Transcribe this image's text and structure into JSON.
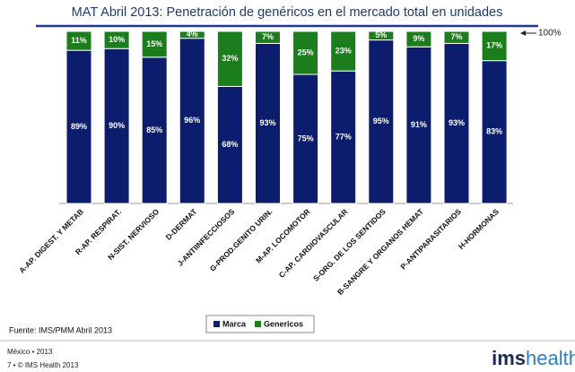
{
  "chart_data": {
    "type": "stacked_bar",
    "title": "MAT Abril 2013: Penetración de genéricos en el mercado total en unidades",
    "categories": [
      "A-AP. DIGEST. Y METAB",
      "R-AP. RESPIRAT.",
      "N-SIST. NERVIOSO",
      "D-DERMAT",
      "J-ANTIINFECCIOSOS",
      "G-PROD.GENITO URIN.",
      "M-AP. LOCOMOTOR",
      "C-AP. CARDIOVASCULAR",
      "S-ORG. DE LOS SENTIDOS",
      "B-SANGRE Y ORGANOS HEMAT",
      "P-ANTIPARASITARIOS",
      "H-HORMONAS"
    ],
    "series": [
      {
        "name": "Marca",
        "color": "#0c1d6e",
        "values": [
          89,
          90,
          85,
          96,
          68,
          93,
          75,
          77,
          95,
          91,
          93,
          83
        ],
        "value_labels": [
          "89%",
          "90%",
          "85%",
          "96%",
          "68%",
          "93%",
          "75%",
          "77%",
          "95%",
          "91%",
          "93%",
          "83%"
        ]
      },
      {
        "name": "Genericos",
        "color": "#1c7d1c",
        "values": [
          11,
          10,
          15,
          4,
          32,
          7,
          25,
          23,
          5,
          9,
          7,
          17
        ],
        "value_labels": [
          "11%",
          "10%",
          "15%",
          "4%",
          "32%",
          "7%",
          "25%",
          "23%",
          "5%",
          "9%",
          "7%",
          "17%"
        ]
      }
    ],
    "ylim": [
      0,
      100
    ],
    "annotation": "100%",
    "legend": "bottom",
    "source": "Fuente: IMS/PMM Abril 2013"
  },
  "footer": {
    "line1": "México • 2013",
    "line2": "7 • © IMS Health 2013",
    "logo_bold": "ims",
    "logo_light": "health"
  }
}
